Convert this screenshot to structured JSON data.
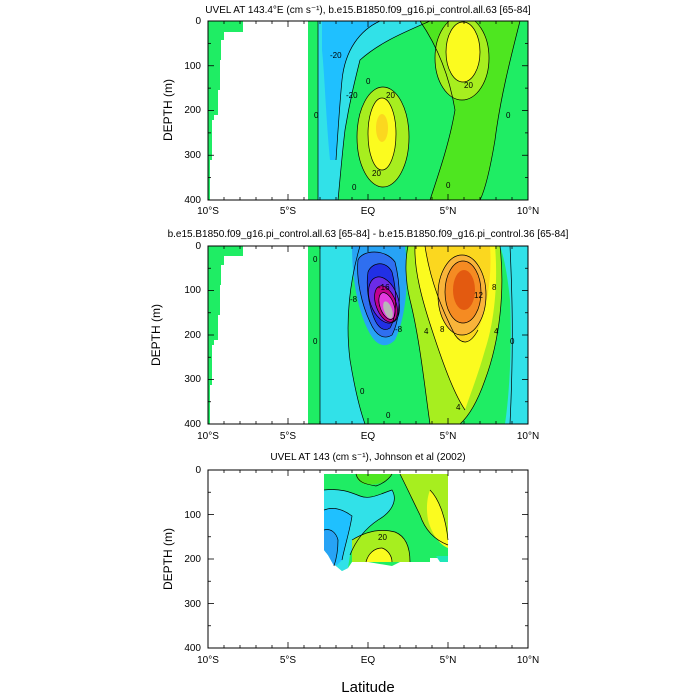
{
  "figure": {
    "xlabel": "Latitude"
  },
  "colors": {
    "levels": [
      "#1fc0ff",
      "#31e1e8",
      "#1fe7b8",
      "#1fed64",
      "#4ee620",
      "#a7ee1f",
      "#fbfb1f",
      "#fbd71f",
      "#f9b43a",
      "#f58b22",
      "#e35a10"
    ],
    "negdeep": [
      "#6b2be6",
      "#2130e5",
      "#2f6ff0",
      "#27a3f5",
      "#36c6ff"
    ],
    "high": [
      "#c2008f",
      "#e23be0",
      "#b7b7b7"
    ]
  },
  "chart_data": [
    {
      "type": "contour",
      "title": "UVEL AT 143.4°E (cm s⁻¹), b.e15.B1850.f09_g16.pi_control.all.63 [65-84]",
      "ylabel": "DEPTH (m)",
      "xlim": [
        -10,
        10
      ],
      "ylim": [
        400,
        0
      ],
      "xticks": [
        "10°S",
        "5°S",
        "EQ",
        "5°N",
        "10°N"
      ],
      "yticks": [
        "0",
        "100",
        "200",
        "300",
        "400"
      ],
      "contour_labels": [
        "-20",
        "-20",
        "0",
        "0",
        "20",
        "20",
        "20",
        "0",
        "0",
        "0"
      ]
    },
    {
      "type": "contour",
      "title": "b.e15.B1850.f09_g16.pi_control.all.63 [65-84] - b.e15.B1850.f09_g16.pi_control.36 [65-84]",
      "ylabel": "DEPTH (m)",
      "xlim": [
        -10,
        10
      ],
      "ylim": [
        400,
        0
      ],
      "xticks": [
        "10°S",
        "5°S",
        "EQ",
        "5°N",
        "10°N"
      ],
      "yticks": [
        "0",
        "100",
        "200",
        "300",
        "400"
      ],
      "contour_labels": [
        "0",
        "-8",
        "-16",
        "-8",
        "0",
        "4",
        "8",
        "12",
        "8",
        "4",
        "0",
        "4",
        "0",
        "0"
      ]
    },
    {
      "type": "contour",
      "title": "UVEL AT 143 (cm s⁻¹), Johnson et al (2002)",
      "ylabel": "DEPTH (m)",
      "xlim": [
        -10,
        10
      ],
      "ylim": [
        400,
        0
      ],
      "xticks": [
        "10°S",
        "5°S",
        "EQ",
        "5°N",
        "10°N"
      ],
      "yticks": [
        "0",
        "100",
        "200",
        "300",
        "400"
      ],
      "contour_labels": [
        "20"
      ]
    }
  ]
}
